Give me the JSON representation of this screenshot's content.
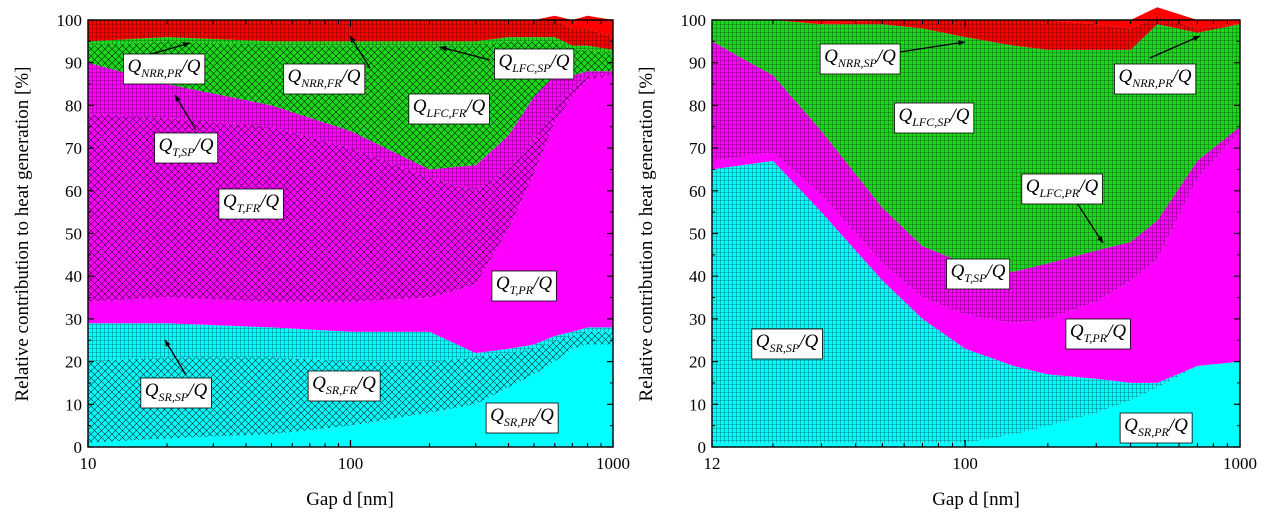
{
  "colors": {
    "cyan": "#00ffff",
    "magenta": "#ff00ff",
    "green": "#1cd81c",
    "red": "#ff0000",
    "hatch": "#000000"
  },
  "chart_data": [
    {
      "type": "area",
      "stacked": true,
      "title": "",
      "xlabel": "Gap d [nm]",
      "ylabel": "Relative contribution to heat generation [%]",
      "xscale": "log",
      "xlim": [
        10,
        1000
      ],
      "ylim": [
        0,
        100
      ],
      "xticks": [
        10,
        100,
        1000
      ],
      "xtick_labels": [
        "10",
        "100",
        "1000"
      ],
      "yticks": [
        0,
        10,
        20,
        30,
        40,
        50,
        60,
        70,
        80,
        90,
        100
      ],
      "grid": false,
      "legend": "none (inline labels)",
      "x": [
        10,
        20,
        50,
        100,
        200,
        300,
        400,
        500,
        600,
        700,
        800,
        1000
      ],
      "series": [
        {
          "name": "Q_SR,PR/Q",
          "color": "#00ffff",
          "hatch": "none",
          "values": [
            1,
            2,
            3,
            5,
            8,
            10,
            14,
            17,
            20,
            23,
            24,
            24
          ]
        },
        {
          "name": "Q_SR,FR/Q",
          "color": "#00ffff",
          "hatch": "cross",
          "values": [
            19,
            19,
            18,
            15,
            12,
            11,
            8,
            6,
            5,
            3,
            3,
            3
          ]
        },
        {
          "name": "Q_SR,SP/Q",
          "color": "#00ffff",
          "hatch": "grid",
          "values": [
            9,
            8,
            7,
            7,
            7,
            1,
            1,
            1,
            1,
            1,
            1,
            1
          ]
        },
        {
          "name": "Q_T,PR/Q",
          "color": "#ff00ff",
          "hatch": "none",
          "values": [
            5,
            6,
            6,
            7,
            8,
            16,
            28,
            40,
            50,
            55,
            58,
            59
          ]
        },
        {
          "name": "Q_T,FR/Q",
          "color": "#ff00ff",
          "hatch": "cross",
          "values": [
            44,
            42,
            41,
            36,
            28,
            22,
            14,
            8,
            3,
            2,
            1,
            0
          ]
        },
        {
          "name": "Q_T,SP/Q",
          "color": "#ff00ff",
          "hatch": "grid",
          "values": [
            12,
            8,
            5,
            4,
            2,
            6,
            8,
            10,
            8,
            3,
            1,
            1
          ]
        },
        {
          "name": "Q_LFC,FR/Q",
          "color": "#1cd81c",
          "hatch": "cross",
          "values": [
            4,
            10,
            14,
            20,
            29,
            28,
            22,
            13,
            8,
            6,
            5,
            4
          ]
        },
        {
          "name": "Q_LFC,SP/Q",
          "color": "#1cd81c",
          "hatch": "grid",
          "values": [
            1,
            1,
            1,
            1,
            1,
            1,
            1,
            1,
            1,
            1,
            1,
            1
          ]
        },
        {
          "name": "Q_NRR,FR/Q",
          "color": "#ff0000",
          "hatch": "grid",
          "values": [
            5,
            4,
            5,
            5,
            5,
            5,
            4,
            4,
            4,
            4,
            4,
            3
          ]
        },
        {
          "name": "Q_NRR,PR/Q",
          "color": "#ff0000",
          "hatch": "none",
          "values": [
            0,
            0,
            0,
            0,
            0,
            0,
            0,
            0,
            1,
            2,
            3,
            4
          ]
        }
      ],
      "annotations": [
        "Q_NRR,PR/Q",
        "Q_NRR,FR/Q",
        "Q_LFC,SP/Q",
        "Q_LFC,FR/Q",
        "Q_T,SP/Q",
        "Q_T,FR/Q",
        "Q_T,PR/Q",
        "Q_SR,SP/Q",
        "Q_SR,FR/Q",
        "Q_SR,PR/Q"
      ]
    },
    {
      "type": "area",
      "stacked": true,
      "title": "",
      "xlabel": "Gap d [nm]",
      "ylabel": "Relative contribution to heat generation [%]",
      "xscale": "log",
      "xlim": [
        12,
        1000
      ],
      "ylim": [
        0,
        100
      ],
      "xticks": [
        12,
        100,
        1000
      ],
      "xtick_labels": [
        "12",
        "100",
        "1000"
      ],
      "yticks": [
        0,
        10,
        20,
        30,
        40,
        50,
        60,
        70,
        80,
        90,
        100
      ],
      "grid": false,
      "legend": "none (inline labels)",
      "x": [
        12,
        20,
        30,
        50,
        70,
        100,
        150,
        200,
        300,
        400,
        500,
        700,
        1000
      ],
      "series": [
        {
          "name": "Q_SR,PR/Q",
          "color": "#00ffff",
          "hatch": "none",
          "values": [
            1,
            1,
            1,
            1,
            1,
            1,
            3,
            5,
            8,
            11,
            14,
            19,
            20
          ]
        },
        {
          "name": "Q_SR,SP/Q",
          "color": "#00ffff",
          "hatch": "grid",
          "values": [
            64,
            66,
            54,
            38,
            29,
            22,
            16,
            12,
            8,
            4,
            1,
            0,
            0
          ]
        },
        {
          "name": "Q_T,PR/Q",
          "color": "#ff00ff",
          "hatch": "none",
          "values": [
            2,
            2,
            4,
            4,
            5,
            8,
            10,
            13,
            18,
            24,
            29,
            44,
            54
          ]
        },
        {
          "name": "Q_T,SP/Q",
          "color": "#ff00ff",
          "hatch": "grid",
          "values": [
            28,
            18,
            15,
            13,
            12,
            12,
            12,
            13,
            12,
            9,
            9,
            4,
            1
          ]
        },
        {
          "name": "Q_LFC,SP/Q",
          "color": "#1cd81c",
          "hatch": "grid",
          "values": [
            5,
            13,
            25,
            43,
            51,
            53,
            53,
            50,
            47,
            45,
            46,
            30,
            24
          ]
        },
        {
          "name": "Q_LFC,PR/Q",
          "color": "#1cd81c",
          "hatch": "none",
          "values": [
            0,
            0,
            0,
            0,
            0,
            0,
            0,
            0,
            0,
            0,
            0,
            0,
            0
          ]
        },
        {
          "name": "Q_NRR,SP/Q",
          "color": "#ff0000",
          "hatch": "grid",
          "values": [
            0,
            0,
            0,
            1,
            2,
            4,
            6,
            7,
            6,
            5,
            2,
            1,
            0
          ]
        },
        {
          "name": "Q_NRR,PR/Q",
          "color": "#ff0000",
          "hatch": "none",
          "values": [
            0,
            0,
            1,
            0,
            0,
            0,
            0,
            0,
            1,
            2,
            2,
            2,
            1
          ]
        }
      ],
      "annotations": [
        "Q_NRR,SP/Q",
        "Q_NRR,PR/Q",
        "Q_LFC,SP/Q",
        "Q_LFC,PR/Q",
        "Q_T,SP/Q",
        "Q_T,PR/Q",
        "Q_SR,SP/Q",
        "Q_SR,PR/Q"
      ]
    }
  ]
}
